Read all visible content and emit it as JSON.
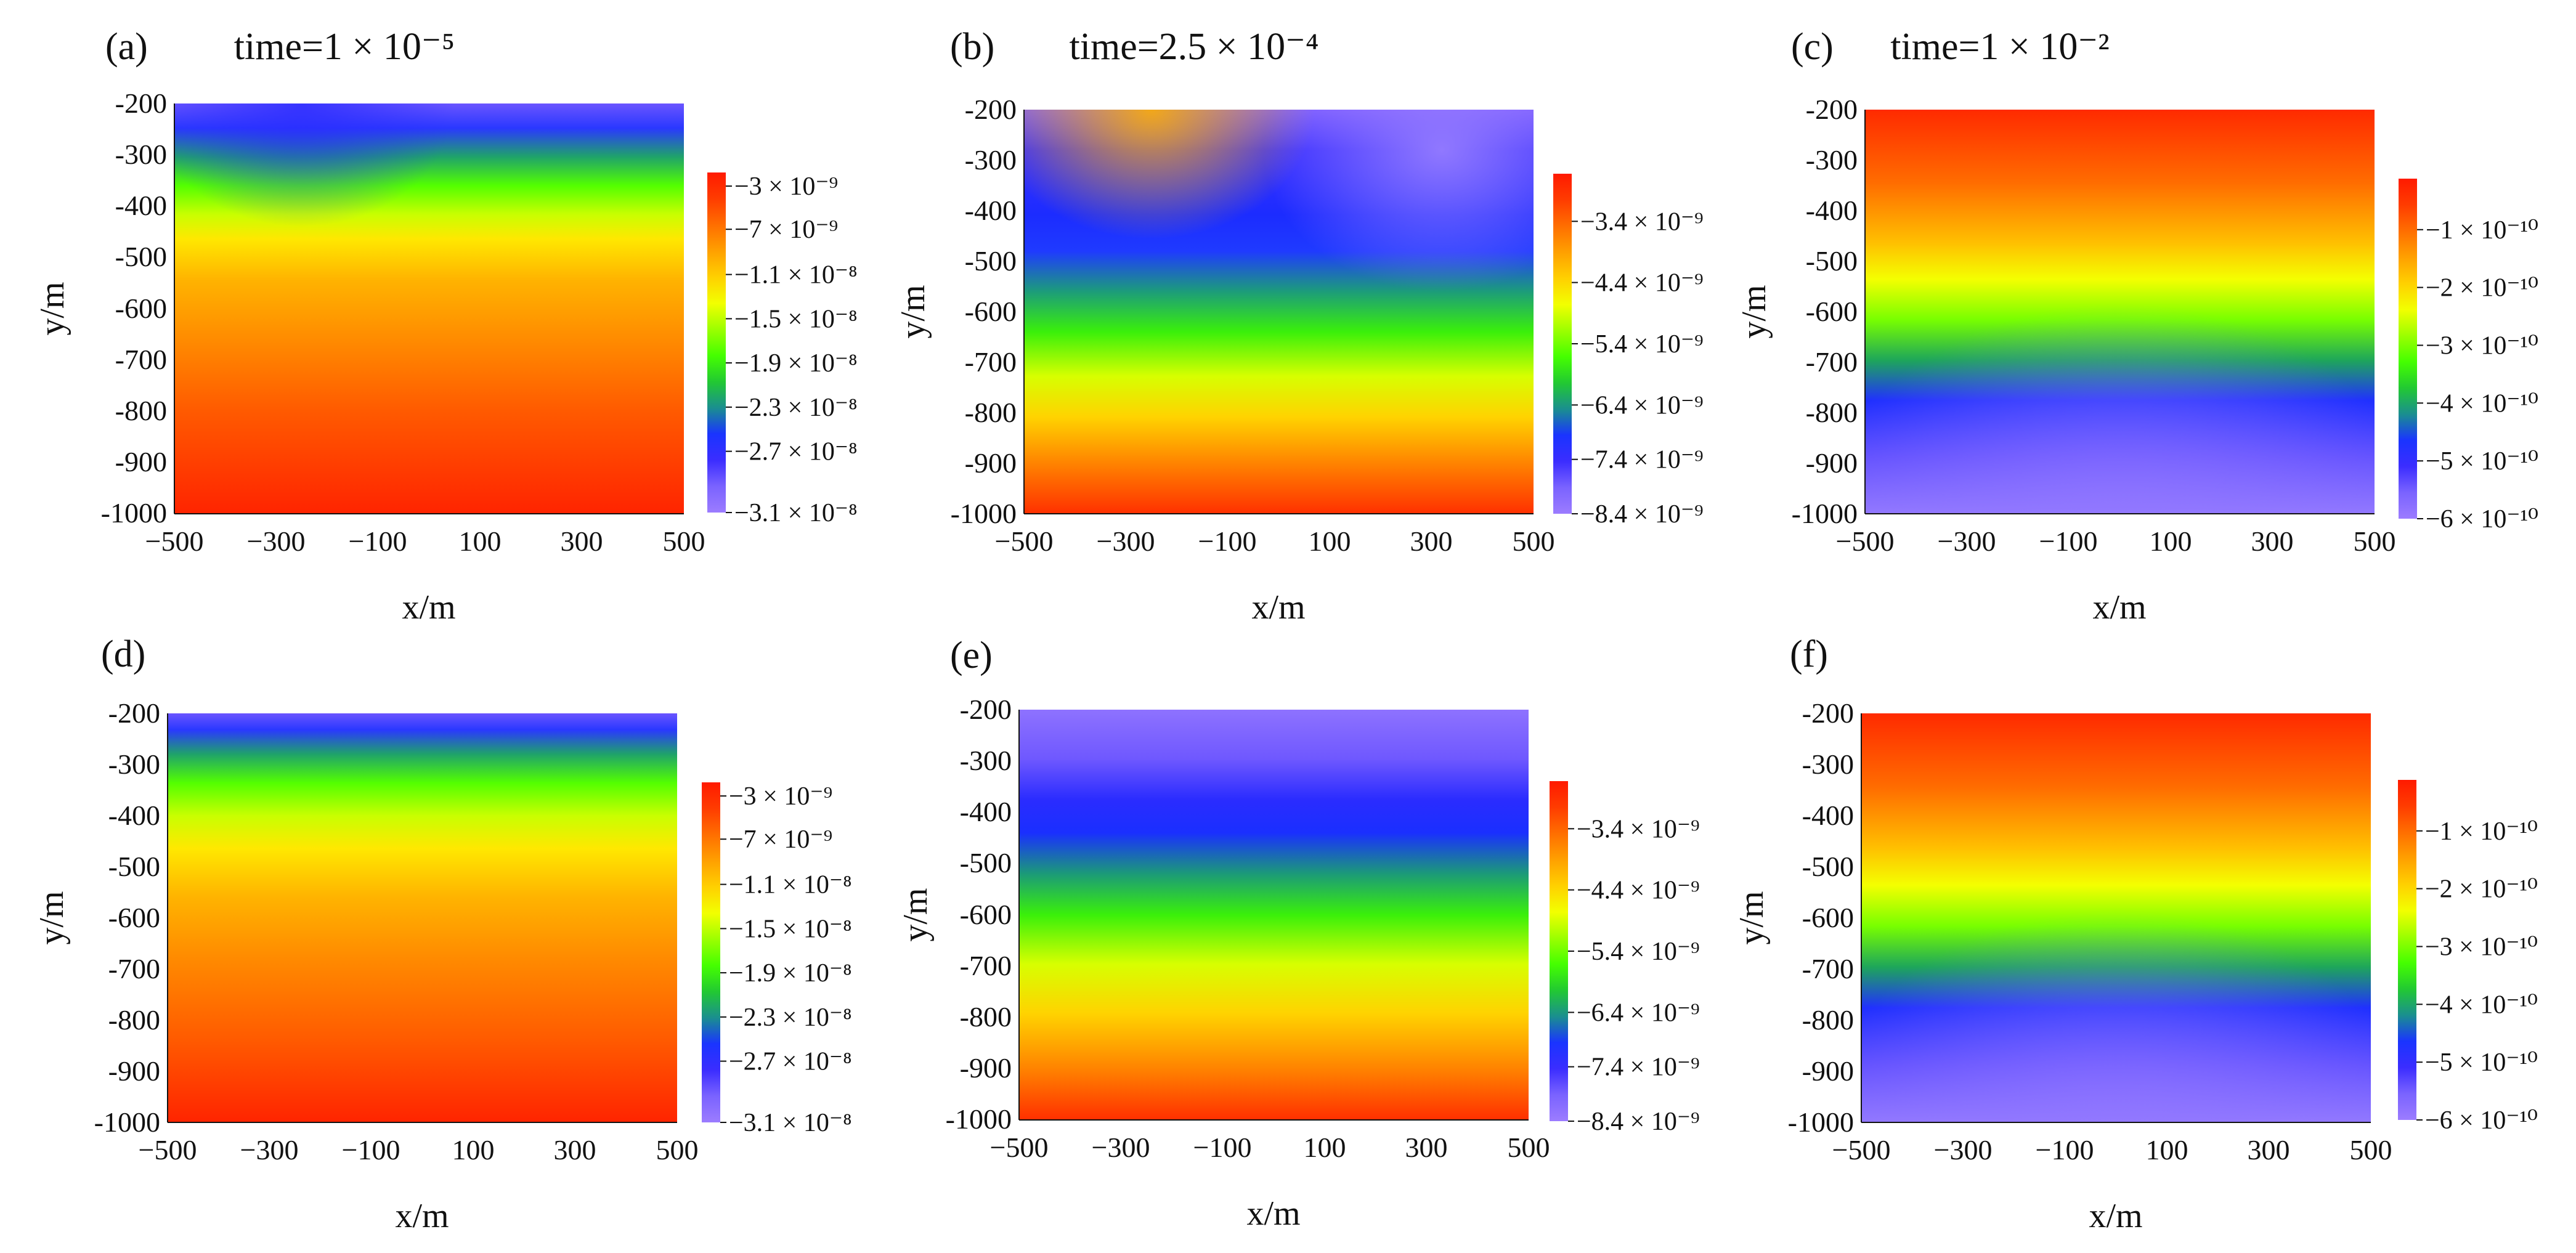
{
  "figure": {
    "panels": [
      {
        "label": "(a)",
        "title": "time=1 × 10⁻⁵",
        "colorbar": "a",
        "field": "a"
      },
      {
        "label": "(b)",
        "title": "time=2.5 × 10⁻⁴",
        "colorbar": "b",
        "field": "b"
      },
      {
        "label": "(c)",
        "title": "time=1 × 10⁻²",
        "colorbar": "c",
        "field": "c"
      },
      {
        "label": "(d)",
        "title": "",
        "colorbar": "a",
        "field": "d"
      },
      {
        "label": "(e)",
        "title": "",
        "colorbar": "b",
        "field": "e"
      },
      {
        "label": "(f)",
        "title": "",
        "colorbar": "c",
        "field": "f"
      }
    ]
  },
  "chart_data": {
    "type": "heatmap",
    "xlabel": "x/m",
    "ylabel": "y/m",
    "xlim": [
      -500,
      500
    ],
    "ylim": [
      -1000,
      -200
    ],
    "xticks": [
      -500,
      -300,
      -100,
      100,
      300,
      500
    ],
    "xtick_labels": [
      "−500",
      "−300",
      "−100",
      "100",
      "300",
      "500"
    ],
    "yticks": [
      -200,
      -300,
      -400,
      -500,
      -600,
      -700,
      -800,
      -900,
      -1000
    ],
    "ytick_labels": [
      "-200",
      "-300",
      "-400",
      "-500",
      "-600",
      "-700",
      "-800",
      "-900",
      "-1000"
    ],
    "colormap": [
      "#9c7cff",
      "#7a63ff",
      "#3b2dff",
      "#1a34ff",
      "#1a8f8f",
      "#22c932",
      "#45ff00",
      "#9cff00",
      "#f2ff00",
      "#ffd000",
      "#ffa000",
      "#ff6e00",
      "#ff3c00",
      "#ff1a00"
    ],
    "colorbars": {
      "a": {
        "labels": [
          "−3 × 10⁻⁹",
          "−7 × 10⁻⁹",
          "−1.1 × 10⁻⁸",
          "−1.5 × 10⁻⁸",
          "−1.9 × 10⁻⁸",
          "−2.3 × 10⁻⁸",
          "−2.7 × 10⁻⁸",
          "−3.1 × 10⁻⁸"
        ],
        "label_positions": [
          0.96,
          0.833,
          0.7,
          0.57,
          0.44,
          0.31,
          0.18,
          0.0
        ]
      },
      "b": {
        "labels": [
          "−3.4 × 10⁻⁹",
          "−4.4 × 10⁻⁹",
          "−5.4 × 10⁻⁹",
          "−6.4 × 10⁻⁹",
          "−7.4 × 10⁻⁹",
          "−8.4 × 10⁻⁹"
        ],
        "label_positions": [
          0.86,
          0.68,
          0.5,
          0.32,
          0.16,
          0.0
        ]
      },
      "c": {
        "labels": [
          "−1 × 10⁻¹⁰",
          "−2 × 10⁻¹⁰",
          "−3 × 10⁻¹⁰",
          "−4 × 10⁻¹⁰",
          "−5 × 10⁻¹⁰",
          "−6 × 10⁻¹⁰"
        ],
        "label_positions": [
          0.85,
          0.68,
          0.51,
          0.34,
          0.17,
          0.0
        ]
      }
    }
  }
}
